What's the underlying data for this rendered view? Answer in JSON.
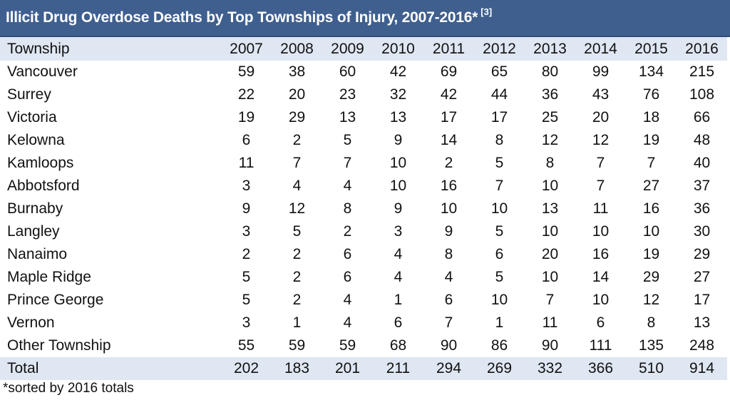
{
  "title": {
    "text": "Illicit Drug Overdose Deaths by Top Townships of Injury, 2007-2016*",
    "ref": "[3]"
  },
  "table": {
    "name_header": "Township",
    "years": [
      "2007",
      "2008",
      "2009",
      "2010",
      "2011",
      "2012",
      "2013",
      "2014",
      "2015",
      "2016"
    ],
    "rows": [
      {
        "name": "Vancouver",
        "values": [
          "59",
          "38",
          "60",
          "42",
          "69",
          "65",
          "80",
          "99",
          "134",
          "215"
        ]
      },
      {
        "name": "Surrey",
        "values": [
          "22",
          "20",
          "23",
          "32",
          "42",
          "44",
          "36",
          "43",
          "76",
          "108"
        ]
      },
      {
        "name": "Victoria",
        "values": [
          "19",
          "29",
          "13",
          "13",
          "17",
          "17",
          "25",
          "20",
          "18",
          "66"
        ]
      },
      {
        "name": "Kelowna",
        "values": [
          "6",
          "2",
          "5",
          "9",
          "14",
          "8",
          "12",
          "12",
          "19",
          "48"
        ]
      },
      {
        "name": "Kamloops",
        "values": [
          "11",
          "7",
          "7",
          "10",
          "2",
          "5",
          "8",
          "7",
          "7",
          "40"
        ]
      },
      {
        "name": "Abbotsford",
        "values": [
          "3",
          "4",
          "4",
          "10",
          "16",
          "7",
          "10",
          "7",
          "27",
          "37"
        ]
      },
      {
        "name": "Burnaby",
        "values": [
          "9",
          "12",
          "8",
          "9",
          "10",
          "10",
          "13",
          "11",
          "16",
          "36"
        ]
      },
      {
        "name": "Langley",
        "values": [
          "3",
          "5",
          "2",
          "3",
          "9",
          "5",
          "10",
          "10",
          "10",
          "30"
        ]
      },
      {
        "name": "Nanaimo",
        "values": [
          "2",
          "2",
          "6",
          "4",
          "8",
          "6",
          "20",
          "16",
          "19",
          "29"
        ]
      },
      {
        "name": "Maple Ridge",
        "values": [
          "5",
          "2",
          "6",
          "4",
          "4",
          "5",
          "10",
          "14",
          "29",
          "27"
        ]
      },
      {
        "name": "Prince George",
        "values": [
          "5",
          "2",
          "4",
          "1",
          "6",
          "10",
          "7",
          "10",
          "12",
          "17"
        ]
      },
      {
        "name": "Vernon",
        "values": [
          "3",
          "1",
          "4",
          "6",
          "7",
          "1",
          "11",
          "6",
          "8",
          "13"
        ]
      },
      {
        "name": "Other Township",
        "values": [
          "55",
          "59",
          "59",
          "68",
          "90",
          "86",
          "90",
          "111",
          "135",
          "248"
        ]
      }
    ],
    "total": {
      "name": "Total",
      "values": [
        "202",
        "183",
        "201",
        "211",
        "294",
        "269",
        "332",
        "366",
        "510",
        "914"
      ]
    }
  },
  "footnote": "*sorted by 2016 totals",
  "colors": {
    "title_background": "#3f5f8f",
    "header_background": "#dfe7f2",
    "total_background": "#dfe7f2"
  }
}
